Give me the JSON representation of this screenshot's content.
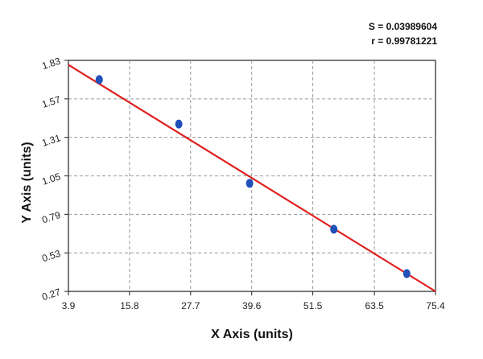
{
  "stats": {
    "s_text": "S = 0.03989604",
    "r_text": "r = 0.99781221"
  },
  "chart_data": {
    "type": "scatter",
    "title": "",
    "xlabel": "X Axis (units)",
    "ylabel": "Y Axis (units)",
    "xlim": [
      3.9,
      75.4
    ],
    "ylim": [
      0.27,
      1.83
    ],
    "xticks": [
      3.9,
      15.8,
      27.7,
      39.6,
      51.5,
      63.5,
      75.4
    ],
    "xtick_labels": [
      "3.9",
      "15.8",
      "27.7",
      "39.6",
      "51.5",
      "63.5",
      "75.4"
    ],
    "yticks": [
      0.27,
      0.53,
      0.79,
      1.05,
      1.31,
      1.57,
      1.83
    ],
    "ytick_labels": [
      "0.27",
      "0.53",
      "0.79",
      "1.05",
      "1.31",
      "1.57",
      "1.83"
    ],
    "grid": true,
    "series": [
      {
        "kind": "points",
        "x": [
          9.9,
          25.4,
          39.2,
          55.6,
          69.8
        ],
        "y": [
          1.7,
          1.4,
          1.0,
          0.69,
          0.39
        ],
        "color": "#2050b8"
      },
      {
        "kind": "fit-line",
        "x": [
          3.9,
          75.4
        ],
        "y": [
          1.8,
          0.27
        ],
        "color": "#e02020"
      }
    ]
  }
}
